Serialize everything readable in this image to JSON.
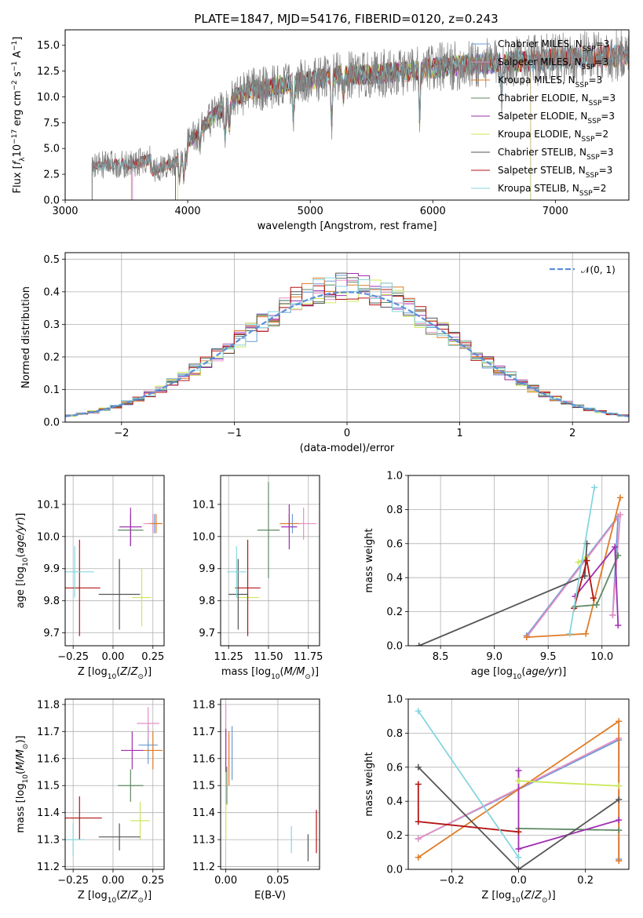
{
  "figure": {
    "title": "PLATE=1847, MJD=54176, FIBERID=0120, z=0.243"
  },
  "colors": {
    "Chabrier MILES": "#6a9bd6",
    "Salpeter MILES": "#e58fc4",
    "Kroupa MILES": "#e07b26",
    "Chabrier ELODIE": "#5f8a63",
    "Salpeter ELODIE": "#9f2fb0",
    "Kroupa ELODIE": "#cbe85a",
    "Chabrier STELIB": "#555555",
    "Salpeter STELIB": "#b31414",
    "Kroupa STELIB": "#86d6df",
    "observed": "#808080",
    "gaussian": "#5b8fd6"
  },
  "chart_data": [
    {
      "id": "spectrum",
      "type": "line",
      "title": "PLATE=1847, MJD=54176, FIBERID=0120, z=0.243",
      "xlabel": "wavelength [Angstrom, rest frame]",
      "ylabel": "Flux [f_λ 10^-17 erg cm^-2 s^-1 A^-1]",
      "xlim": [
        3000,
        7600
      ],
      "ylim": [
        0,
        16.5
      ],
      "xticks": [
        3000,
        4000,
        5000,
        6000,
        7000
      ],
      "yticks": [
        0.0,
        2.5,
        5.0,
        7.5,
        10.0,
        12.5,
        15.0
      ],
      "legend_position": "top-right",
      "grid": false,
      "series": [
        {
          "name": "Chabrier MILES, N_SSP=3",
          "start": 3550,
          "end": 7600
        },
        {
          "name": "Salpeter MILES, N_SSP=3",
          "start": 3550,
          "end": 7600
        },
        {
          "name": "Kroupa MILES, N_SSP=3",
          "start": 3540,
          "end": 7600
        },
        {
          "name": "Chabrier ELODIE, N_SSP=3",
          "start": 3900,
          "end": 6800
        },
        {
          "name": "Salpeter ELODIE, N_SSP=3",
          "start": 3900,
          "end": 6800
        },
        {
          "name": "Kroupa ELODIE, N_SSP=2",
          "start": 3920,
          "end": 6800
        },
        {
          "name": "Chabrier STELIB, N_SSP=3",
          "start": 3220,
          "end": 7600
        },
        {
          "name": "Salpeter STELIB, N_SSP=3",
          "start": 3220,
          "end": 7600
        },
        {
          "name": "Kroupa STELIB, N_SSP=2",
          "start": 3220,
          "end": 7600
        }
      ],
      "continuum": {
        "x": [
          3220,
          3300,
          3500,
          3600,
          3700,
          3800,
          3900,
          4000,
          4100,
          4200,
          4300,
          4400,
          4500,
          4700,
          5000,
          5200,
          5500,
          5800,
          6000,
          6200,
          6500,
          6800,
          7000,
          7300,
          7600
        ],
        "y": [
          3.2,
          3.4,
          3.5,
          3.6,
          4.0,
          4.4,
          4.8,
          5.5,
          6.8,
          8.0,
          9.0,
          10.0,
          10.6,
          11.0,
          11.6,
          12.0,
          12.2,
          12.5,
          12.8,
          13.0,
          13.3,
          13.5,
          13.7,
          13.9,
          14.0
        ]
      }
    },
    {
      "id": "residuals",
      "type": "area",
      "xlabel": "(data-model)/error",
      "ylabel": "Normed distribution",
      "xlim": [
        -2.5,
        2.5
      ],
      "ylim": [
        0,
        0.52
      ],
      "xticks": [
        -2,
        -1,
        0,
        1,
        2
      ],
      "yticks": [
        0.0,
        0.1,
        0.2,
        0.3,
        0.4,
        0.5
      ],
      "grid": true,
      "bin_width": 0.1,
      "legend": "𝒩(0, 1)",
      "legend_position": "top-right"
    },
    {
      "id": "age_vs_Z",
      "type": "scatter",
      "xlabel": "Z [log10(Z/Z⊙)]",
      "ylabel": "age [log10(age/yr)]",
      "xlim": [
        -0.3,
        0.32
      ],
      "ylim": [
        9.66,
        10.19
      ],
      "xticks": [
        -0.25,
        0.0,
        0.25
      ],
      "yticks": [
        9.7,
        9.8,
        9.9,
        10.0,
        10.1
      ],
      "grid": true,
      "points": [
        {
          "x": 0.26,
          "y": 10.04,
          "xerr": 0.05,
          "yerr": 0.03,
          "color": "#6a9bd6"
        },
        {
          "x": 0.25,
          "y": 10.04,
          "xerr": 0.06,
          "yerr": 0.03,
          "color": "#e58fc4"
        },
        {
          "x": 0.27,
          "y": 10.04,
          "xerr": 0.04,
          "yerr": 0.03,
          "color": "#e07b26"
        },
        {
          "x": 0.11,
          "y": 10.02,
          "xerr": 0.08,
          "yerr": 0.05,
          "color": "#5f8a63"
        },
        {
          "x": 0.11,
          "y": 10.03,
          "xerr": 0.07,
          "yerr": 0.06,
          "color": "#9f2fb0"
        },
        {
          "x": 0.18,
          "y": 9.81,
          "xerr": 0.06,
          "yerr": 0.09,
          "color": "#cbe85a"
        },
        {
          "x": 0.04,
          "y": 9.82,
          "xerr": 0.13,
          "yerr": 0.11,
          "color": "#555555"
        },
        {
          "x": -0.21,
          "y": 9.84,
          "xerr": 0.13,
          "yerr": 0.15,
          "color": "#b31414"
        },
        {
          "x": -0.24,
          "y": 9.89,
          "xerr": 0.12,
          "yerr": 0.08,
          "color": "#86d6df"
        }
      ]
    },
    {
      "id": "age_vs_mass",
      "type": "scatter",
      "xlabel": "mass [log10(M/M⊙)]",
      "ylabel": "",
      "xlim": [
        11.2,
        11.82
      ],
      "ylim": [
        9.66,
        10.19
      ],
      "xticks": [
        11.25,
        11.5,
        11.75
      ],
      "yticks": [
        9.7,
        9.8,
        9.9,
        10.0,
        10.1
      ],
      "grid": true,
      "points": [
        {
          "x": 11.65,
          "y": 10.04,
          "xerr": 0.07,
          "yerr": 0.03,
          "color": "#6a9bd6"
        },
        {
          "x": 11.72,
          "y": 10.04,
          "xerr": 0.08,
          "yerr": 0.05,
          "color": "#e58fc4"
        },
        {
          "x": 11.63,
          "y": 10.04,
          "xerr": 0.06,
          "yerr": 0.03,
          "color": "#e07b26"
        },
        {
          "x": 11.5,
          "y": 10.02,
          "xerr": 0.07,
          "yerr": 0.15,
          "color": "#5f8a63"
        },
        {
          "x": 11.63,
          "y": 10.03,
          "xerr": 0.05,
          "yerr": 0.07,
          "color": "#9f2fb0"
        },
        {
          "x": 11.37,
          "y": 9.81,
          "xerr": 0.07,
          "yerr": 0.02,
          "color": "#cbe85a"
        },
        {
          "x": 11.31,
          "y": 9.82,
          "xerr": 0.06,
          "yerr": 0.11,
          "color": "#555555"
        },
        {
          "x": 11.37,
          "y": 9.84,
          "xerr": 0.08,
          "yerr": 0.15,
          "color": "#b31414"
        },
        {
          "x": 11.3,
          "y": 9.89,
          "xerr": 0.06,
          "yerr": 0.08,
          "color": "#86d6df"
        }
      ]
    },
    {
      "id": "mass_vs_Z",
      "type": "scatter",
      "xlabel": "Z [log10(Z/Z⊙)]",
      "ylabel": "mass [log10(M/M⊙)]",
      "xlim": [
        -0.3,
        0.32
      ],
      "ylim": [
        11.19,
        11.82
      ],
      "xticks": [
        -0.25,
        0.0,
        0.25
      ],
      "yticks": [
        11.2,
        11.3,
        11.4,
        11.5,
        11.6,
        11.7,
        11.8
      ],
      "grid": true,
      "points": [
        {
          "x": 0.22,
          "y": 11.65,
          "xerr": 0.06,
          "yerr": 0.07,
          "color": "#6a9bd6"
        },
        {
          "x": 0.22,
          "y": 11.73,
          "xerr": 0.07,
          "yerr": 0.06,
          "color": "#e58fc4"
        },
        {
          "x": 0.25,
          "y": 11.63,
          "xerr": 0.06,
          "yerr": 0.07,
          "color": "#e07b26"
        },
        {
          "x": 0.11,
          "y": 11.5,
          "xerr": 0.08,
          "yerr": 0.06,
          "color": "#5f8a63"
        },
        {
          "x": 0.12,
          "y": 11.63,
          "xerr": 0.07,
          "yerr": 0.07,
          "color": "#9f2fb0"
        },
        {
          "x": 0.17,
          "y": 11.37,
          "xerr": 0.06,
          "yerr": 0.07,
          "color": "#cbe85a"
        },
        {
          "x": 0.04,
          "y": 11.31,
          "xerr": 0.13,
          "yerr": 0.05,
          "color": "#555555"
        },
        {
          "x": -0.21,
          "y": 11.38,
          "xerr": 0.14,
          "yerr": 0.08,
          "color": "#b31414"
        },
        {
          "x": -0.25,
          "y": 11.3,
          "xerr": 0.07,
          "yerr": 0.06,
          "color": "#86d6df"
        }
      ]
    },
    {
      "id": "mass_vs_ebv",
      "type": "scatter",
      "xlabel": "E(B-V)",
      "ylabel": "",
      "xlim": [
        -0.005,
        0.09
      ],
      "ylim": [
        11.19,
        11.82
      ],
      "xticks": [
        0.0,
        0.05
      ],
      "yticks": [
        11.2,
        11.3,
        11.4,
        11.5,
        11.6,
        11.7,
        11.8
      ],
      "grid": true,
      "points": [
        {
          "x": 0.006,
          "y": 11.62,
          "xerr": 0,
          "yerr": 0.1,
          "color": "#6a9bd6"
        },
        {
          "x": 0.0,
          "y": 11.7,
          "xerr": 0,
          "yerr": 0.1,
          "color": "#e58fc4"
        },
        {
          "x": 0.003,
          "y": 11.6,
          "xerr": 0,
          "yerr": 0.1,
          "color": "#e07b26"
        },
        {
          "x": 0.001,
          "y": 11.5,
          "xerr": 0,
          "yerr": 0.07,
          "color": "#5f8a63"
        },
        {
          "x": 0.0,
          "y": 11.63,
          "xerr": 0,
          "yerr": 0.08,
          "color": "#9f2fb0"
        },
        {
          "x": 0.0,
          "y": 11.37,
          "xerr": 0,
          "yerr": 0.07,
          "color": "#cbe85a"
        },
        {
          "x": 0.079,
          "y": 11.27,
          "xerr": 0,
          "yerr": 0.05,
          "color": "#555555"
        },
        {
          "x": 0.087,
          "y": 11.33,
          "xerr": 0,
          "yerr": 0.08,
          "color": "#b31414"
        },
        {
          "x": 0.063,
          "y": 11.3,
          "xerr": 0,
          "yerr": 0.05,
          "color": "#86d6df"
        }
      ]
    },
    {
      "id": "weight_vs_age",
      "type": "line",
      "xlabel": "age [log10(age/yr)]",
      "ylabel": "mass weight",
      "xlim": [
        8.2,
        10.25
      ],
      "ylim": [
        0,
        1.0
      ],
      "xticks": [
        8.5,
        9.0,
        9.5,
        10.0
      ],
      "yticks": [
        0.0,
        0.2,
        0.4,
        0.6,
        0.8,
        1.0
      ],
      "grid": true,
      "series": [
        {
          "color": "#6a9bd6",
          "x": [
            9.3,
            10.15,
            10.1
          ],
          "y": [
            0.06,
            0.76,
            0.18
          ]
        },
        {
          "color": "#e58fc4",
          "x": [
            9.3,
            10.17,
            10.1
          ],
          "y": [
            0.05,
            0.77,
            0.18
          ]
        },
        {
          "color": "#e07b26",
          "x": [
            9.3,
            9.85,
            10.17
          ],
          "y": [
            0.05,
            0.07,
            0.87
          ]
        },
        {
          "color": "#5f8a63",
          "x": [
            9.75,
            9.95,
            10.15
          ],
          "y": [
            0.23,
            0.24,
            0.53
          ]
        },
        {
          "color": "#9f2fb0",
          "x": [
            9.75,
            10.12,
            10.15
          ],
          "y": [
            0.29,
            0.58,
            0.12
          ]
        },
        {
          "color": "#cbe85a",
          "x": [
            9.78,
            9.86
          ],
          "y": [
            0.49,
            0.52
          ]
        },
        {
          "color": "#555555",
          "x": [
            8.3,
            9.84,
            9.86
          ],
          "y": [
            0.0,
            0.41,
            0.6
          ]
        },
        {
          "color": "#b31414",
          "x": [
            9.74,
            9.86,
            9.92
          ],
          "y": [
            0.22,
            0.5,
            0.28
          ]
        },
        {
          "color": "#86d6df",
          "x": [
            9.7,
            9.93
          ],
          "y": [
            0.07,
            0.93
          ]
        }
      ]
    },
    {
      "id": "weight_vs_Z",
      "type": "line",
      "xlabel": "Z [log10(Z/Z⊙)]",
      "ylabel": "mass weight",
      "xlim": [
        -0.33,
        0.33
      ],
      "ylim": [
        0,
        1.0
      ],
      "xticks": [
        -0.2,
        0.0,
        0.2
      ],
      "yticks": [
        0.0,
        0.2,
        0.4,
        0.6,
        0.8,
        1.0
      ],
      "grid": true,
      "series": [
        {
          "color": "#6a9bd6",
          "x": [
            -0.3,
            0.3,
            0.3
          ],
          "y": [
            0.18,
            0.76,
            0.06
          ]
        },
        {
          "color": "#e58fc4",
          "x": [
            -0.3,
            0.3,
            0.3
          ],
          "y": [
            0.18,
            0.77,
            0.05
          ]
        },
        {
          "color": "#e07b26",
          "x": [
            -0.3,
            0.3,
            0.3
          ],
          "y": [
            0.07,
            0.87,
            0.05
          ]
        },
        {
          "color": "#5f8a63",
          "x": [
            0.0,
            0.3
          ],
          "y": [
            0.24,
            0.23
          ]
        },
        {
          "color": "#9f2fb0",
          "x": [
            0.0,
            0.0,
            0.3
          ],
          "y": [
            0.58,
            0.12,
            0.29
          ]
        },
        {
          "color": "#cbe85a",
          "x": [
            0.0,
            0.3
          ],
          "y": [
            0.52,
            0.49
          ]
        },
        {
          "color": "#555555",
          "x": [
            -0.3,
            0.0,
            0.3
          ],
          "y": [
            0.6,
            0.0,
            0.41
          ]
        },
        {
          "color": "#b31414",
          "x": [
            -0.3,
            -0.3,
            0.0
          ],
          "y": [
            0.5,
            0.28,
            0.22
          ]
        },
        {
          "color": "#86d6df",
          "x": [
            -0.3,
            0.0
          ],
          "y": [
            0.93,
            0.07
          ]
        }
      ]
    }
  ]
}
